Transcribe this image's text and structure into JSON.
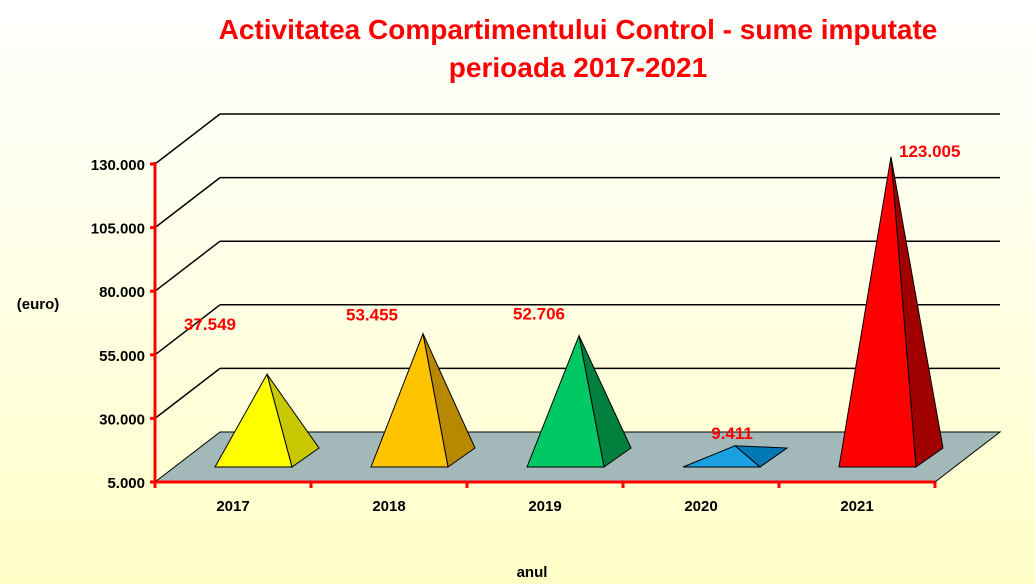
{
  "chart_data": {
    "type": "bar",
    "style": "3d-pyramid",
    "title": [
      "Activitatea Compartimentului Control - sume imputate",
      "perioada 2017-2021"
    ],
    "xlabel": "anul",
    "ylabel": "(euro)",
    "ylim": [
      5000,
      130000
    ],
    "yticks": [
      "5.000",
      "30.000",
      "55.000",
      "80.000",
      "105.000",
      "130.000"
    ],
    "ytick_values": [
      5000,
      30000,
      55000,
      80000,
      105000,
      130000
    ],
    "grid": true,
    "categories": [
      "2017",
      "2018",
      "2019",
      "2020",
      "2021"
    ],
    "values": [
      37549,
      53455,
      52706,
      9411,
      123005
    ],
    "data_labels": [
      "37.549",
      "53.455",
      "52.706",
      "9.411",
      "123.005"
    ],
    "colors": [
      {
        "front": "#ffff00",
        "side": "#c8c800"
      },
      {
        "front": "#ffc400",
        "side": "#b88800"
      },
      {
        "front": "#00c864",
        "side": "#00803c"
      },
      {
        "front": "#1aa0e0",
        "side": "#0078b4"
      },
      {
        "front": "#ff0000",
        "side": "#a00000"
      }
    ],
    "label_color": "#ff0000",
    "axis_color": "#ff0000",
    "floor_color": "#a3b9b9"
  }
}
